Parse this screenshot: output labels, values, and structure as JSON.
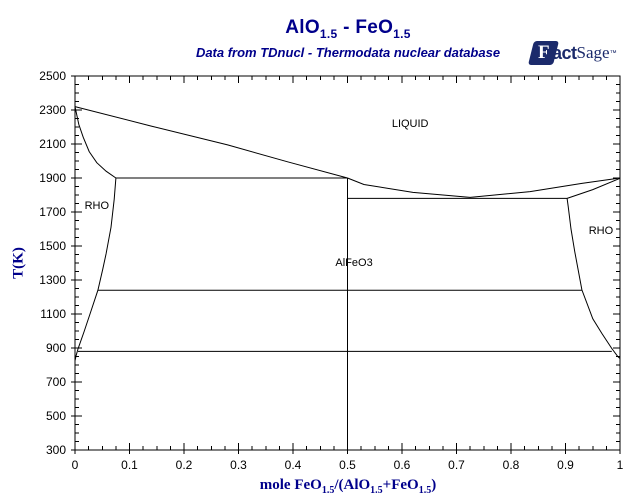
{
  "header": {
    "title_parts": [
      {
        "text": "AlO"
      },
      {
        "text": "1.5",
        "sub": true
      },
      {
        "text": " - "
      },
      {
        "text": "FeO"
      },
      {
        "text": "1.5",
        "sub": true
      }
    ],
    "subtitle": "Data from TDnucl - Thermodata nuclear database",
    "title_color": "#00008B"
  },
  "logo": {
    "f": "F",
    "act": "act",
    "sage": "Sage",
    "mark": "™",
    "color": "#1B2A6B"
  },
  "chart_data": {
    "type": "line",
    "title": "AlO1.5 - FeO1.5",
    "subtitle": "Data from TDnucl - Thermodata nuclear database",
    "ylabel": "T(K)",
    "xlabel_parts": [
      {
        "text": "mole FeO"
      },
      {
        "text": "1.5",
        "sub": true
      },
      {
        "text": "/(AlO"
      },
      {
        "text": "1.5",
        "sub": true
      },
      {
        "text": "+FeO"
      },
      {
        "text": "1.5",
        "sub": true
      },
      {
        "text": ")"
      }
    ],
    "xlim": [
      0,
      1
    ],
    "ylim": [
      300,
      2500
    ],
    "x_major_ticks": [
      0,
      0.1,
      0.2,
      0.3,
      0.4,
      0.5,
      0.6,
      0.7,
      0.8,
      0.9,
      1
    ],
    "x_tick_labels": [
      "0",
      "0.1",
      "0.2",
      "0.3",
      "0.4",
      "0.5",
      "0.6",
      "0.7",
      "0.8",
      "0.9",
      "1"
    ],
    "x_minor_step": 0.025,
    "y_major_ticks": [
      300,
      500,
      700,
      900,
      1100,
      1300,
      1500,
      1700,
      1900,
      2100,
      2300,
      2500
    ],
    "y_tick_labels": [
      "300",
      "500",
      "700",
      "900",
      "1100",
      "1300",
      "1500",
      "1700",
      "1900",
      "2100",
      "2300",
      "2500"
    ],
    "y_minor_step": 50,
    "grid": false,
    "line_color": "#000000",
    "region_labels": [
      {
        "text": "LIQUID",
        "x": 0.615,
        "T": 2225
      },
      {
        "text": "RHO",
        "x": 0.04,
        "T": 1740
      },
      {
        "text": "RHO",
        "x": 0.965,
        "T": 1595
      },
      {
        "text": "AlFeO3",
        "x": 0.512,
        "T": 1405
      }
    ],
    "series": [
      {
        "name": "liquidus-left",
        "points": [
          [
            0,
            2320
          ],
          [
            0.14,
            2205
          ],
          [
            0.28,
            2095
          ],
          [
            0.39,
            1995
          ],
          [
            0.5,
            1900
          ]
        ]
      },
      {
        "name": "solidus-left",
        "points": [
          [
            0,
            2320
          ],
          [
            0.007,
            2215
          ],
          [
            0.015,
            2140
          ],
          [
            0.026,
            2055
          ],
          [
            0.04,
            1990
          ],
          [
            0.057,
            1940
          ],
          [
            0.075,
            1900
          ]
        ]
      },
      {
        "name": "eutectic-1900",
        "points": [
          [
            0.075,
            1900
          ],
          [
            0.5,
            1900
          ]
        ]
      },
      {
        "name": "liquidus-right",
        "points": [
          [
            0.5,
            1900
          ],
          [
            0.53,
            1862
          ],
          [
            0.62,
            1815
          ],
          [
            0.725,
            1786
          ],
          [
            0.835,
            1820
          ],
          [
            0.93,
            1868
          ],
          [
            1,
            1900
          ]
        ]
      },
      {
        "name": "solidus-right",
        "points": [
          [
            0.903,
            1780
          ],
          [
            0.95,
            1832
          ],
          [
            1,
            1898
          ]
        ]
      },
      {
        "name": "isotherm-1780",
        "points": [
          [
            0.5,
            1780
          ],
          [
            0.903,
            1780
          ]
        ]
      },
      {
        "name": "alfeo3-stoichiometric-line",
        "points": [
          [
            0.5,
            1900
          ],
          [
            0.5,
            300
          ]
        ]
      },
      {
        "name": "solvus-left",
        "points": [
          [
            0.075,
            1900
          ],
          [
            0.072,
            1775
          ],
          [
            0.066,
            1610
          ],
          [
            0.057,
            1455
          ],
          [
            0.051,
            1365
          ],
          [
            0.042,
            1240
          ],
          [
            0.0275,
            1100
          ],
          [
            0.0165,
            995
          ],
          [
            0.0055,
            895
          ],
          [
            0.002,
            855
          ],
          [
            0,
            825
          ]
        ]
      },
      {
        "name": "solvus-right",
        "points": [
          [
            0.903,
            1780
          ],
          [
            0.905,
            1733
          ],
          [
            0.91,
            1600
          ],
          [
            0.917,
            1465
          ],
          [
            0.93,
            1242
          ],
          [
            0.95,
            1072
          ],
          [
            0.967,
            985
          ],
          [
            0.985,
            897
          ],
          [
            0.996,
            850
          ],
          [
            1,
            838
          ]
        ]
      },
      {
        "name": "isotherm-1240",
        "points": [
          [
            0.042,
            1240
          ],
          [
            0.93,
            1240
          ]
        ]
      },
      {
        "name": "isotherm-880",
        "points": [
          [
            0.0055,
            880
          ],
          [
            0.985,
            880
          ]
        ]
      }
    ]
  }
}
